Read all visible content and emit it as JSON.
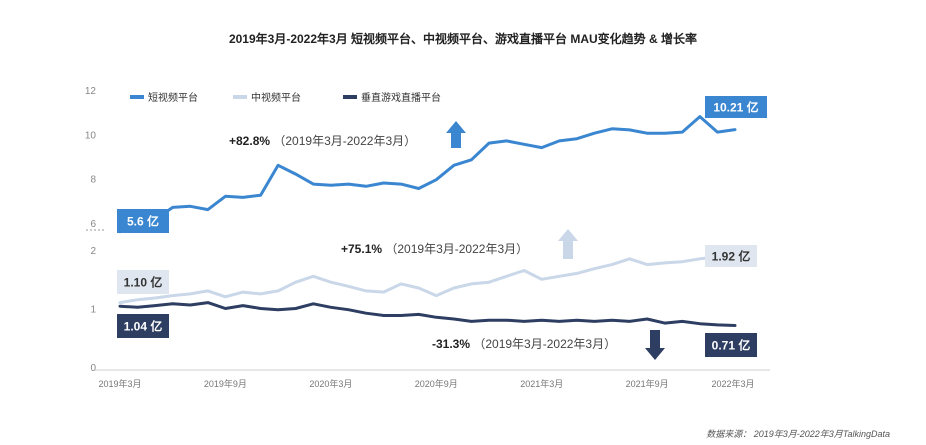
{
  "chart_data": {
    "type": "line",
    "title": "2019年3月-2022年3月 短视频平台、中视频平台、游戏直播平台 MAU变化趋势 & 增长率",
    "source": "数据来源：  2019年3月-2022年3月TalkingData",
    "x_tick_labels": [
      "2019年3月",
      "2019年9月",
      "2020年3月",
      "2020年9月",
      "2021年3月",
      "2021年9月",
      "2022年3月"
    ],
    "upper_axis": {
      "ticks": [
        "12",
        "10",
        "8",
        "6"
      ],
      "ylim": [
        5.0,
        12.0
      ],
      "broken_below": true
    },
    "lower_axis": {
      "ticks": [
        "2",
        "1",
        "0"
      ],
      "ylim": [
        0,
        2
      ]
    },
    "series": [
      {
        "name": "短视频平台",
        "color": "#3a86d0",
        "axis": "upper",
        "values": [
          5.6,
          6.05,
          6.15,
          6.7,
          6.75,
          6.6,
          7.2,
          7.15,
          7.25,
          8.6,
          8.2,
          7.75,
          7.7,
          7.75,
          7.65,
          7.8,
          7.75,
          7.55,
          7.95,
          8.6,
          8.85,
          9.6,
          9.7,
          9.55,
          9.4,
          9.7,
          9.8,
          10.05,
          10.25,
          10.2,
          10.05,
          10.05,
          10.1,
          10.8,
          10.1,
          10.21
        ],
        "start_label": "5.6 亿",
        "end_label": "10.21 亿",
        "growth": "+82.8%",
        "growth_period": "（2019年3月-2022年3月）"
      },
      {
        "name": "中视频平台",
        "color": "#c9d7e8",
        "axis": "lower",
        "values": [
          1.1,
          1.15,
          1.18,
          1.22,
          1.25,
          1.3,
          1.2,
          1.28,
          1.25,
          1.3,
          1.45,
          1.55,
          1.45,
          1.38,
          1.3,
          1.28,
          1.42,
          1.35,
          1.22,
          1.35,
          1.42,
          1.45,
          1.55,
          1.65,
          1.5,
          1.55,
          1.6,
          1.68,
          1.75,
          1.85,
          1.75,
          1.78,
          1.8,
          1.85,
          1.88,
          1.92
        ],
        "start_label": "1.10 亿",
        "end_label": "1.92 亿",
        "growth": "+75.1%",
        "growth_period": "（2019年3月-2022年3月）"
      },
      {
        "name": "垂直游戏直播平台",
        "color": "#2e3e62",
        "axis": "lower",
        "values": [
          1.04,
          1.02,
          1.05,
          1.08,
          1.06,
          1.1,
          1.0,
          1.05,
          1.0,
          0.98,
          1.0,
          1.08,
          1.02,
          0.98,
          0.92,
          0.88,
          0.88,
          0.9,
          0.85,
          0.82,
          0.78,
          0.8,
          0.8,
          0.78,
          0.8,
          0.78,
          0.8,
          0.78,
          0.8,
          0.78,
          0.82,
          0.75,
          0.78,
          0.74,
          0.72,
          0.71
        ],
        "start_label": "1.04 亿",
        "end_label": "0.71 亿",
        "growth": "-31.3%",
        "growth_period": "（2019年3月-2022年3月）"
      }
    ],
    "legend_position": "top-left",
    "grid": false
  }
}
